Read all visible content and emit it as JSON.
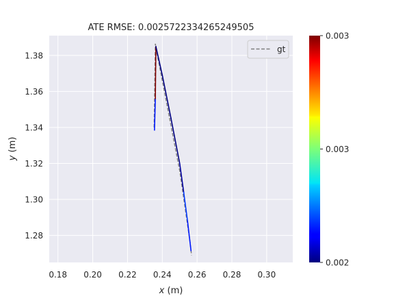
{
  "chart_data": {
    "type": "line",
    "title": "ATE RMSE: 0.0025722334265249505",
    "xlabel_var": "x",
    "xlabel_unit": " (m)",
    "ylabel_var": "y",
    "ylabel_unit": " (m)",
    "xlim": [
      0.175,
      0.315
    ],
    "ylim": [
      1.265,
      1.391
    ],
    "xticks": [
      0.18,
      0.2,
      0.22,
      0.24,
      0.26,
      0.28,
      0.3
    ],
    "xtick_labels": [
      "0.18",
      "0.20",
      "0.22",
      "0.24",
      "0.26",
      "0.28",
      "0.30"
    ],
    "yticks": [
      1.28,
      1.3,
      1.32,
      1.34,
      1.36,
      1.38
    ],
    "ytick_labels": [
      "1.28",
      "1.30",
      "1.32",
      "1.34",
      "1.36",
      "1.38"
    ],
    "grid": true,
    "legend": {
      "placement": "top-right",
      "entries": [
        "gt"
      ]
    },
    "series": [
      {
        "name": "gt",
        "style": "dashed",
        "color": "#7f7f7f",
        "x": [
          0.2353,
          0.2356,
          0.236,
          0.2367,
          0.238,
          0.24,
          0.242,
          0.244,
          0.246,
          0.248,
          0.25,
          0.2515,
          0.253,
          0.2545,
          0.256,
          0.2568
        ],
        "y": [
          1.34,
          1.36,
          1.3865,
          1.382,
          1.376,
          1.366,
          1.356,
          1.346,
          1.336,
          1.326,
          1.316,
          1.306,
          1.296,
          1.286,
          1.276,
          1.269
        ]
      },
      {
        "name": "",
        "style": "solid",
        "colormap": "jet",
        "segments": [
          {
            "x1": 0.2355,
            "y1": 1.3385,
            "x2": 0.236,
            "y2": 1.356,
            "e": 0.00215
          },
          {
            "x1": 0.236,
            "y1": 1.356,
            "x2": 0.2363,
            "y2": 1.385,
            "e": 0.003
          },
          {
            "x1": 0.2363,
            "y1": 1.385,
            "x2": 0.24,
            "y2": 1.369,
            "e": 0.002
          },
          {
            "x1": 0.24,
            "y1": 1.369,
            "x2": 0.245,
            "y2": 1.345,
            "e": 0.002
          },
          {
            "x1": 0.245,
            "y1": 1.345,
            "x2": 0.25,
            "y2": 1.32,
            "e": 0.002
          },
          {
            "x1": 0.25,
            "y1": 1.32,
            "x2": 0.2523,
            "y2": 1.304,
            "e": 0.00203
          },
          {
            "x1": 0.2523,
            "y1": 1.304,
            "x2": 0.2545,
            "y2": 1.288,
            "e": 0.00218
          },
          {
            "x1": 0.2545,
            "y1": 1.288,
            "x2": 0.2565,
            "y2": 1.2715,
            "e": 0.00215
          }
        ]
      }
    ],
    "colorbar": {
      "colormap": "jet",
      "range": [
        0.002,
        0.003
      ],
      "ticks": [
        0.002,
        0.0025,
        0.003
      ],
      "tick_labels": [
        "0.002",
        "0.003",
        "0.003"
      ]
    }
  }
}
